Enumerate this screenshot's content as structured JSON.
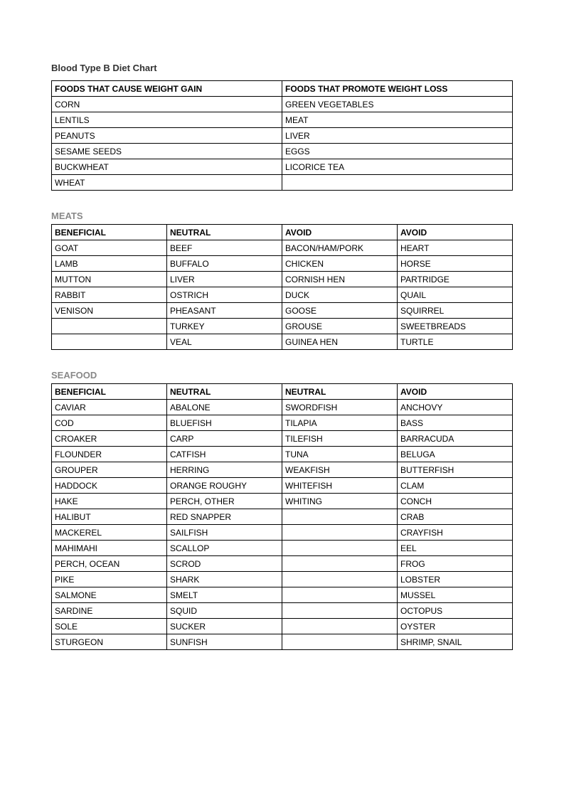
{
  "title": "Blood Type B Diet Chart",
  "weightTable": {
    "headers": [
      "FOODS THAT CAUSE WEIGHT GAIN",
      "FOODS THAT PROMOTE WEIGHT LOSS"
    ],
    "rows": [
      [
        "CORN",
        "GREEN VEGETABLES"
      ],
      [
        "LENTILS",
        "MEAT"
      ],
      [
        "PEANUTS",
        "LIVER"
      ],
      [
        "SESAME SEEDS",
        "EGGS"
      ],
      [
        "BUCKWHEAT",
        "LICORICE TEA"
      ],
      [
        "WHEAT",
        ""
      ]
    ]
  },
  "meats": {
    "title": "MEATS",
    "headers": [
      "BENEFICIAL",
      "NEUTRAL",
      "AVOID",
      "AVOID"
    ],
    "rows": [
      [
        "GOAT",
        "BEEF",
        "BACON/HAM/PORK",
        "HEART"
      ],
      [
        "LAMB",
        "BUFFALO",
        "CHICKEN",
        "HORSE"
      ],
      [
        "MUTTON",
        "LIVER",
        "CORNISH HEN",
        "PARTRIDGE"
      ],
      [
        "RABBIT",
        "OSTRICH",
        "DUCK",
        "QUAIL"
      ],
      [
        "VENISON",
        "PHEASANT",
        "GOOSE",
        "SQUIRREL"
      ],
      [
        "",
        "TURKEY",
        "GROUSE",
        "SWEETBREADS"
      ],
      [
        "",
        "VEAL",
        "GUINEA HEN",
        "TURTLE"
      ]
    ]
  },
  "seafood": {
    "title": "SEAFOOD",
    "headers": [
      "BENEFICIAL",
      "NEUTRAL",
      "NEUTRAL",
      "AVOID"
    ],
    "rows": [
      [
        "CAVIAR",
        "ABALONE",
        "SWORDFISH",
        "ANCHOVY"
      ],
      [
        "COD",
        "BLUEFISH",
        "TILAPIA",
        "BASS"
      ],
      [
        "CROAKER",
        "CARP",
        "TILEFISH",
        "BARRACUDA"
      ],
      [
        "FLOUNDER",
        "CATFISH",
        "TUNA",
        "BELUGA"
      ],
      [
        "GROUPER",
        "HERRING",
        "WEAKFISH",
        "BUTTERFISH"
      ],
      [
        "HADDOCK",
        "ORANGE ROUGHY",
        "WHITEFISH",
        "CLAM"
      ],
      [
        "HAKE",
        "PERCH, OTHER",
        "WHITING",
        "CONCH"
      ],
      [
        "HALIBUT",
        "RED SNAPPER",
        "",
        "CRAB"
      ],
      [
        "MACKEREL",
        "SAILFISH",
        "",
        "CRAYFISH"
      ],
      [
        "MAHIMAHI",
        "SCALLOP",
        "",
        "EEL"
      ],
      [
        "PERCH, OCEAN",
        "SCROD",
        "",
        "FROG"
      ],
      [
        "PIKE",
        "SHARK",
        "",
        "LOBSTER"
      ],
      [
        "SALMONE",
        "SMELT",
        "",
        "MUSSEL"
      ],
      [
        "SARDINE",
        "SQUID",
        "",
        "OCTOPUS"
      ],
      [
        "SOLE",
        "SUCKER",
        "",
        "OYSTER"
      ],
      [
        "STURGEON",
        "SUNFISH",
        "",
        "SHRIMP, SNAIL"
      ]
    ]
  }
}
